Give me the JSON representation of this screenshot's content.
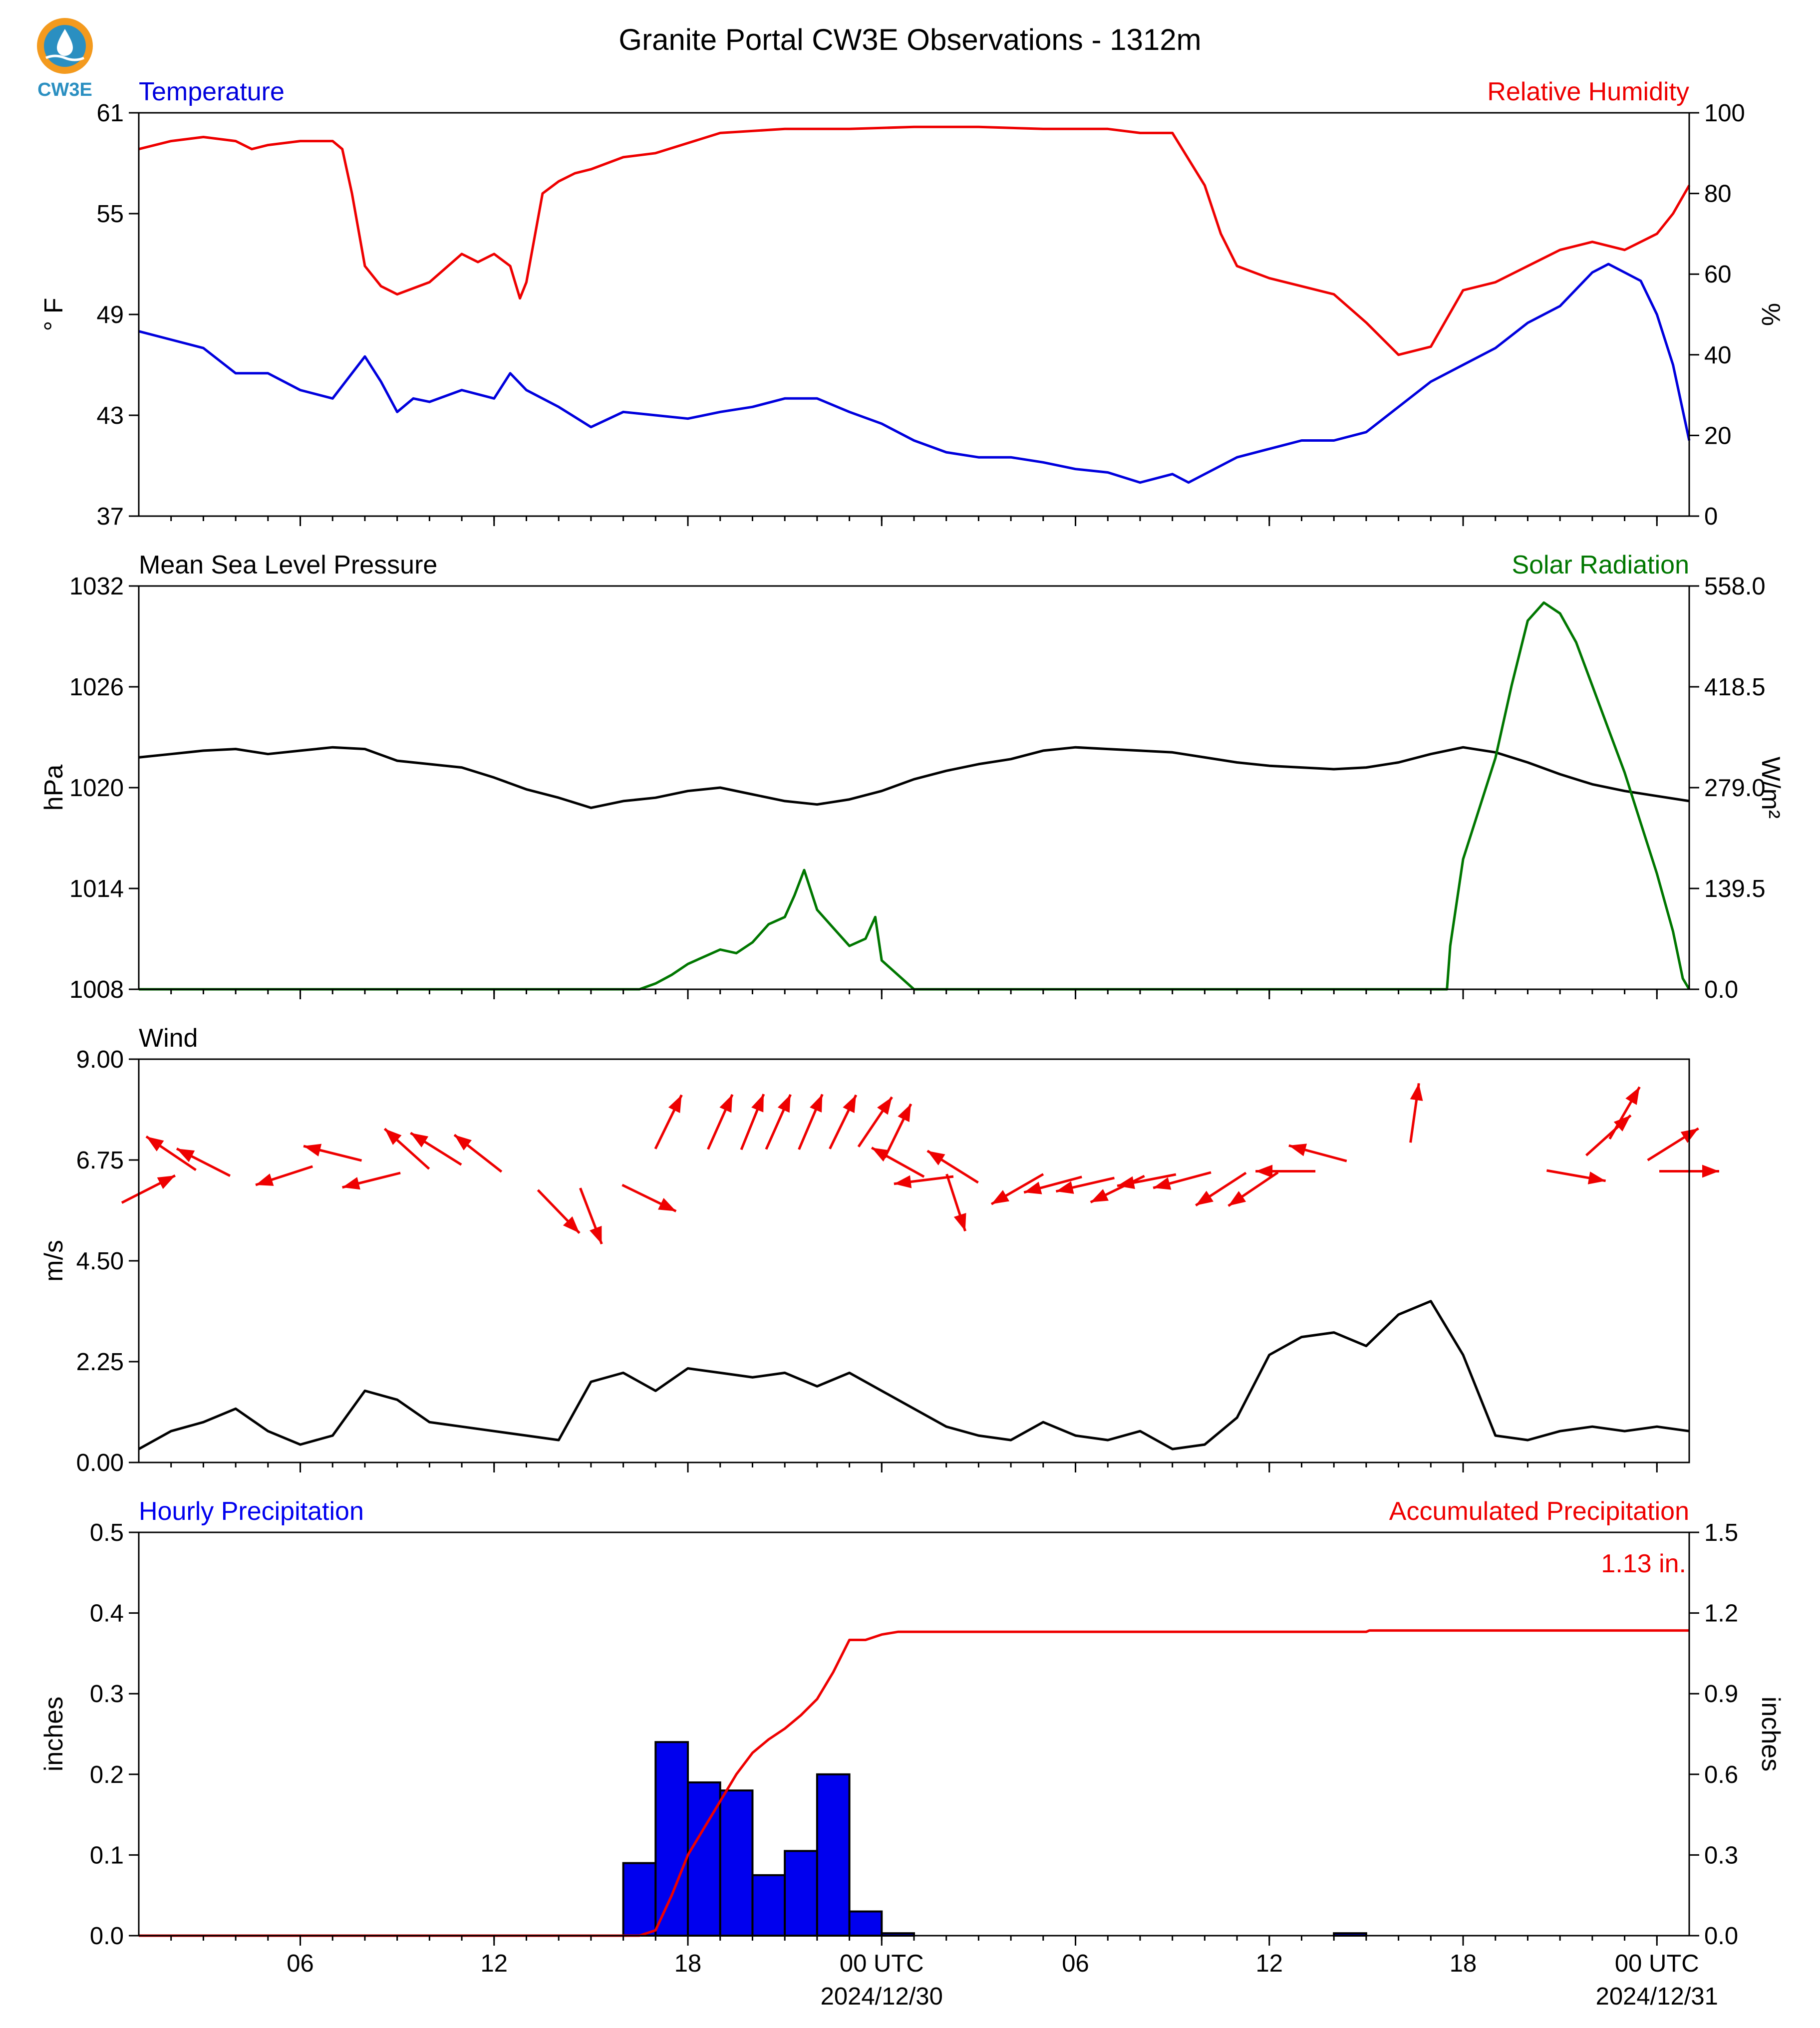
{
  "figure": {
    "title": "Granite Portal CW3E Observations - 1312m",
    "logo_text": "CW3E"
  },
  "colors": {
    "temperature": "#0000dd",
    "relative_humidity": "#ee0000",
    "pressure": "#000000",
    "solar": "#007700",
    "wind_speed": "#000000",
    "wind_arrow": "#ee0000",
    "hourly_bar": "#0000ee",
    "accumulated": "#ee0000",
    "logo_orange": "#f39a1e",
    "logo_blue": "#2a8fc1"
  },
  "x_axis": {
    "range_hours": [
      0,
      48
    ],
    "ticks": [
      {
        "hour": 5,
        "label": "06",
        "date": ""
      },
      {
        "hour": 11,
        "label": "12",
        "date": ""
      },
      {
        "hour": 17,
        "label": "18",
        "date": ""
      },
      {
        "hour": 23,
        "label": "00 UTC",
        "date": "2024/12/30"
      },
      {
        "hour": 29,
        "label": "06",
        "date": ""
      },
      {
        "hour": 35,
        "label": "12",
        "date": ""
      },
      {
        "hour": 41,
        "label": "18",
        "date": ""
      },
      {
        "hour": 47,
        "label": "00 UTC",
        "date": "2024/12/31"
      }
    ],
    "minor_tick_step_hours": 1
  },
  "chart_data": [
    {
      "type": "line",
      "panel": "temperature_humidity",
      "left_title": "Temperature",
      "right_title": "Relative Humidity",
      "ylabel_left": "° F",
      "ylabel_right": "%",
      "ylim_left": [
        37,
        61
      ],
      "yticks_left": [
        "37",
        "43",
        "49",
        "55",
        "61"
      ],
      "ylim_right": [
        0,
        100
      ],
      "yticks_right": [
        "0",
        "20",
        "40",
        "60",
        "80",
        "100"
      ],
      "series": [
        {
          "name": "Temperature",
          "axis": "left",
          "x": [
            0,
            1,
            2,
            3,
            4,
            5,
            6,
            7,
            7.5,
            8,
            8.5,
            9,
            10,
            11,
            11.5,
            12,
            13,
            14,
            15,
            16,
            17,
            18,
            19,
            20,
            21,
            22,
            23,
            24,
            25,
            26,
            27,
            28,
            29,
            30,
            31,
            32,
            32.5,
            33,
            34,
            35,
            36,
            37,
            38,
            39,
            40,
            41,
            42,
            43,
            44,
            45,
            45.5,
            46,
            46.5,
            47,
            47.5,
            48
          ],
          "y": [
            48,
            47.5,
            47,
            45.5,
            45.5,
            44.5,
            44,
            46.5,
            45,
            43.2,
            44,
            43.8,
            44.5,
            44,
            45.5,
            44.5,
            43.5,
            42.3,
            43.2,
            43,
            42.8,
            43.2,
            43.5,
            44,
            44,
            43.2,
            42.5,
            41.5,
            40.8,
            40.5,
            40.5,
            40.2,
            39.8,
            39.6,
            39,
            39.5,
            39,
            39.5,
            40.5,
            41,
            41.5,
            41.5,
            42,
            43.5,
            45,
            46,
            47,
            48.5,
            49.5,
            51.5,
            52,
            51.5,
            51,
            49,
            46,
            41.5
          ]
        },
        {
          "name": "Relative Humidity",
          "axis": "right",
          "x": [
            0,
            1,
            2,
            3,
            3.5,
            4,
            5,
            6,
            6.3,
            6.6,
            7,
            7.5,
            8,
            9,
            10,
            10.5,
            11,
            11.5,
            11.8,
            12,
            12.5,
            13,
            13.5,
            14,
            15,
            16,
            18,
            20,
            22,
            24,
            26,
            28,
            30,
            31,
            32,
            33,
            33.5,
            34,
            35,
            36,
            37,
            38,
            39,
            40,
            41,
            42,
            43,
            44,
            45,
            46,
            47,
            47.5,
            48
          ],
          "y": [
            91,
            93,
            94,
            93,
            91,
            92,
            93,
            93,
            91,
            80,
            62,
            57,
            55,
            58,
            65,
            63,
            65,
            62,
            54,
            58,
            80,
            83,
            85,
            86,
            89,
            90,
            95,
            96,
            96,
            96.5,
            96.5,
            96,
            96,
            95,
            95,
            82,
            70,
            62,
            59,
            57,
            55,
            48,
            40,
            42,
            56,
            58,
            62,
            66,
            68,
            66,
            70,
            75,
            82
          ]
        }
      ]
    },
    {
      "type": "line",
      "panel": "pressure_solar",
      "left_title": "Mean Sea Level Pressure",
      "right_title": "Solar Radiation",
      "ylabel_left": "hPa",
      "ylabel_right": "W/m²",
      "ylim_left": [
        1008,
        1032
      ],
      "yticks_left": [
        "1008",
        "1014",
        "1020",
        "1026",
        "1032"
      ],
      "ylim_right": [
        0,
        558
      ],
      "yticks_right": [
        "0.0",
        "139.5",
        "279.0",
        "418.5",
        "558.0"
      ],
      "series": [
        {
          "name": "Mean Sea Level Pressure",
          "axis": "left",
          "x": [
            0,
            1,
            2,
            3,
            4,
            5,
            6,
            7,
            8,
            9,
            10,
            11,
            12,
            13,
            14,
            15,
            16,
            17,
            18,
            19,
            20,
            21,
            22,
            23,
            24,
            25,
            26,
            27,
            28,
            29,
            30,
            31,
            32,
            33,
            34,
            35,
            36,
            37,
            38,
            39,
            40,
            41,
            42,
            43,
            44,
            45,
            46,
            47,
            48
          ],
          "y": [
            1021.8,
            1022,
            1022.2,
            1022.3,
            1022,
            1022.2,
            1022.4,
            1022.3,
            1021.6,
            1021.4,
            1021.2,
            1020.6,
            1019.9,
            1019.4,
            1018.8,
            1019.2,
            1019.4,
            1019.8,
            1020,
            1019.6,
            1019.2,
            1019,
            1019.3,
            1019.8,
            1020.5,
            1021,
            1021.4,
            1021.7,
            1022.2,
            1022.4,
            1022.3,
            1022.2,
            1022.1,
            1021.8,
            1021.5,
            1021.3,
            1021.2,
            1021.1,
            1021.2,
            1021.5,
            1022,
            1022.4,
            1022.1,
            1021.5,
            1020.8,
            1020.2,
            1019.8,
            1019.5,
            1019.2
          ]
        },
        {
          "name": "Solar Radiation",
          "axis": "right",
          "x": [
            0,
            15.5,
            16,
            16.5,
            17,
            17.5,
            18,
            18.5,
            19,
            19.5,
            20,
            20.3,
            20.6,
            21,
            21.5,
            22,
            22.5,
            22.8,
            23,
            23.5,
            24,
            40.5,
            40.6,
            41,
            42,
            42.5,
            43,
            43.5,
            44,
            44.5,
            45,
            45.5,
            46,
            46.5,
            47,
            47.5,
            47.8,
            48
          ],
          "y": [
            0,
            0,
            8,
            20,
            35,
            45,
            55,
            50,
            65,
            90,
            100,
            130,
            165,
            110,
            85,
            60,
            70,
            100,
            40,
            20,
            0,
            0,
            60,
            180,
            320,
            420,
            510,
            535,
            520,
            480,
            420,
            360,
            300,
            230,
            160,
            80,
            15,
            0
          ]
        }
      ]
    },
    {
      "type": "line",
      "panel": "wind",
      "left_title": "Wind",
      "ylabel_left": "m/s",
      "ylim_left": [
        0,
        9
      ],
      "yticks_left": [
        "0.00",
        "2.25",
        "4.50",
        "6.75",
        "9.00"
      ],
      "series": [
        {
          "name": "Wind",
          "axis": "left",
          "x": [
            0,
            1,
            2,
            3,
            4,
            5,
            6,
            7,
            8,
            9,
            10,
            11,
            12,
            13,
            14,
            15,
            16,
            17,
            18,
            19,
            20,
            21,
            22,
            23,
            24,
            25,
            26,
            27,
            28,
            29,
            30,
            31,
            32,
            33,
            34,
            35,
            36,
            37,
            38,
            39,
            40,
            41,
            42,
            43,
            44,
            45,
            46,
            47,
            48
          ],
          "y": [
            0.3,
            0.7,
            0.9,
            1.2,
            0.7,
            0.4,
            0.6,
            1.6,
            1.4,
            0.9,
            0.8,
            0.7,
            0.6,
            0.5,
            1.8,
            2.0,
            1.6,
            2.1,
            2.0,
            1.9,
            2.0,
            1.7,
            2.0,
            1.6,
            1.2,
            0.8,
            0.6,
            0.5,
            0.9,
            0.6,
            0.5,
            0.7,
            0.3,
            0.4,
            1.0,
            2.4,
            2.8,
            2.9,
            2.6,
            3.3,
            3.6,
            2.4,
            0.6,
            0.5,
            0.7,
            0.8,
            0.7,
            0.8,
            0.7
          ],
          "arrows": [
            {
              "x": 0.3,
              "speed": 6.1,
              "dir_deg": 243
            },
            {
              "x": 1.0,
              "speed": 6.9,
              "dir_deg": 124
            },
            {
              "x": 2.0,
              "speed": 6.7,
              "dir_deg": 117
            },
            {
              "x": 4.5,
              "speed": 6.4,
              "dir_deg": 72
            },
            {
              "x": 6.0,
              "speed": 6.9,
              "dir_deg": 104
            },
            {
              "x": 7.2,
              "speed": 6.3,
              "dir_deg": 76
            },
            {
              "x": 8.3,
              "speed": 7.0,
              "dir_deg": 132
            },
            {
              "x": 9.2,
              "speed": 7.0,
              "dir_deg": 122
            },
            {
              "x": 10.5,
              "speed": 6.9,
              "dir_deg": 128
            },
            {
              "x": 13.0,
              "speed": 5.6,
              "dir_deg": 316
            },
            {
              "x": 14.0,
              "speed": 5.5,
              "dir_deg": 339
            },
            {
              "x": 15.8,
              "speed": 5.9,
              "dir_deg": 296
            },
            {
              "x": 16.4,
              "speed": 7.6,
              "dir_deg": 206
            },
            {
              "x": 18.0,
              "speed": 7.6,
              "dir_deg": 204
            },
            {
              "x": 19.0,
              "speed": 7.6,
              "dir_deg": 202
            },
            {
              "x": 19.8,
              "speed": 7.6,
              "dir_deg": 204
            },
            {
              "x": 20.8,
              "speed": 7.6,
              "dir_deg": 203
            },
            {
              "x": 21.8,
              "speed": 7.6,
              "dir_deg": 206
            },
            {
              "x": 22.8,
              "speed": 7.6,
              "dir_deg": 214
            },
            {
              "x": 23.5,
              "speed": 7.4,
              "dir_deg": 206
            },
            {
              "x": 23.5,
              "speed": 6.7,
              "dir_deg": 119
            },
            {
              "x": 24.3,
              "speed": 6.3,
              "dir_deg": 83
            },
            {
              "x": 25.2,
              "speed": 6.6,
              "dir_deg": 122
            },
            {
              "x": 25.3,
              "speed": 5.8,
              "dir_deg": 342
            },
            {
              "x": 27.2,
              "speed": 6.1,
              "dir_deg": 60
            },
            {
              "x": 28.3,
              "speed": 6.2,
              "dir_deg": 75
            },
            {
              "x": 29.3,
              "speed": 6.2,
              "dir_deg": 77
            },
            {
              "x": 30.3,
              "speed": 6.1,
              "dir_deg": 64
            },
            {
              "x": 31.2,
              "speed": 6.3,
              "dir_deg": 79
            },
            {
              "x": 32.3,
              "speed": 6.3,
              "dir_deg": 75
            },
            {
              "x": 33.5,
              "speed": 6.1,
              "dir_deg": 57
            },
            {
              "x": 34.5,
              "speed": 6.1,
              "dir_deg": 56
            },
            {
              "x": 35.5,
              "speed": 6.5,
              "dir_deg": 90
            },
            {
              "x": 36.5,
              "speed": 6.9,
              "dir_deg": 105
            },
            {
              "x": 39.5,
              "speed": 7.8,
              "dir_deg": 188
            },
            {
              "x": 44.5,
              "speed": 6.4,
              "dir_deg": 280
            },
            {
              "x": 45.5,
              "speed": 7.3,
              "dir_deg": 228
            },
            {
              "x": 46.0,
              "speed": 7.8,
              "dir_deg": 210
            },
            {
              "x": 47.5,
              "speed": 7.1,
              "dir_deg": 238
            },
            {
              "x": 48.0,
              "speed": 6.5,
              "dir_deg": 270
            }
          ]
        }
      ]
    },
    {
      "type": "bar",
      "panel": "precipitation",
      "left_title": "Hourly Precipitation",
      "right_title": "Accumulated Precipitation",
      "annotation": "1.13 in.",
      "ylabel_left": "inches",
      "ylabel_right": "inches",
      "ylim_left": [
        0,
        0.5
      ],
      "yticks_left": [
        "0.0",
        "0.1",
        "0.2",
        "0.3",
        "0.4",
        "0.5"
      ],
      "ylim_right": [
        0,
        1.5
      ],
      "yticks_right": [
        "0.0",
        "0.3",
        "0.6",
        "0.9",
        "1.2",
        "1.5"
      ],
      "bars": {
        "name": "Hourly Precipitation",
        "axis": "left",
        "x_start": [
          15,
          16,
          17,
          18,
          19,
          20,
          21,
          22,
          23,
          37
        ],
        "values": [
          0.09,
          0.24,
          0.19,
          0.18,
          0.075,
          0.105,
          0.2,
          0.03,
          0.003,
          0.003
        ]
      },
      "series": [
        {
          "name": "Accumulated Precipitation",
          "axis": "right",
          "x": [
            0,
            15.5,
            16,
            16.5,
            17,
            17.5,
            18,
            18.5,
            19,
            19.5,
            20,
            20.5,
            21,
            21.5,
            22,
            22.5,
            23,
            23.5,
            24,
            38,
            38.1,
            48
          ],
          "y": [
            0,
            0,
            0.02,
            0.15,
            0.3,
            0.4,
            0.5,
            0.6,
            0.68,
            0.73,
            0.77,
            0.82,
            0.88,
            0.98,
            1.1,
            1.1,
            1.12,
            1.13,
            1.13,
            1.13,
            1.135,
            1.135
          ]
        }
      ]
    }
  ]
}
